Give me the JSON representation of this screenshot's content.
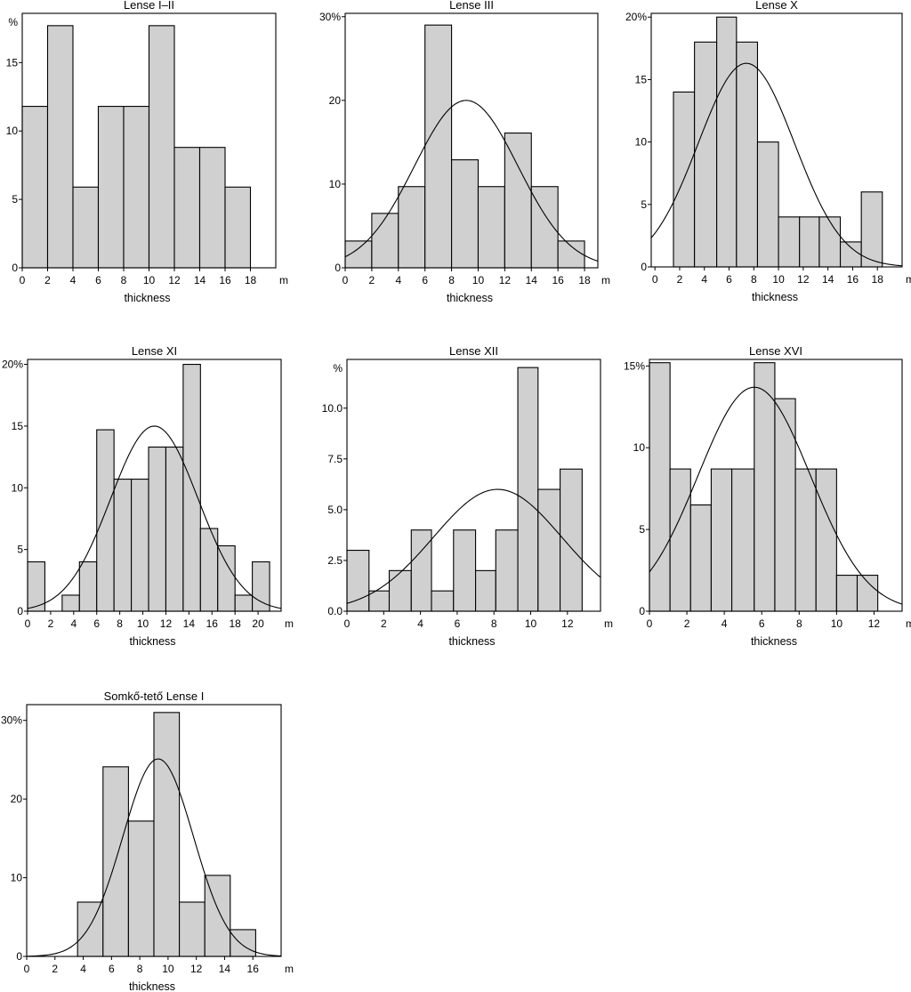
{
  "chart_data": [
    {
      "type": "bar",
      "title": "Lense I–II",
      "xlabel": "thickness",
      "x_unit": "m",
      "y_unit_label": "%",
      "percent_on_top_tick": false,
      "bin_edges": [
        0,
        2,
        4,
        6,
        8,
        10,
        12,
        14,
        16,
        18
      ],
      "values": [
        11.8,
        17.7,
        5.9,
        11.8,
        11.8,
        17.7,
        8.8,
        8.8,
        5.9
      ],
      "xlim": [
        0,
        20
      ],
      "ylim": [
        0,
        18.6
      ],
      "xticks": [
        0,
        2,
        4,
        6,
        8,
        10,
        12,
        14,
        16,
        18
      ],
      "yticks": [
        0,
        5,
        10,
        15
      ],
      "normal_curve": null
    },
    {
      "type": "bar",
      "title": "Lense III",
      "xlabel": "thickness",
      "x_unit": "m",
      "y_unit_label": "",
      "percent_on_top_tick": true,
      "bin_edges": [
        0,
        2,
        4,
        6,
        8,
        10,
        12,
        14,
        16,
        18
      ],
      "values": [
        3.2,
        6.5,
        9.7,
        29.0,
        12.9,
        9.7,
        16.1,
        9.7,
        3.2
      ],
      "xlim": [
        0,
        19
      ],
      "ylim": [
        0,
        30.4
      ],
      "xticks": [
        0,
        2,
        4,
        6,
        8,
        10,
        12,
        14,
        16,
        18
      ],
      "yticks": [
        0,
        10,
        20,
        30
      ],
      "normal_curve": {
        "mean": 9.1,
        "sd": 3.9,
        "peak": 20.0
      }
    },
    {
      "type": "bar",
      "title": "Lense X",
      "xlabel": "thickness",
      "x_unit": "m",
      "y_unit_label": "",
      "percent_on_top_tick": true,
      "bin_edges": [
        1.5,
        3.2,
        5,
        6.6,
        8.3,
        10,
        11.7,
        13.3,
        15,
        16.7,
        18.4
      ],
      "values": [
        14,
        18,
        20,
        18,
        10,
        4,
        4,
        4,
        2,
        6
      ],
      "xlim": [
        -0.3,
        20
      ],
      "ylim": [
        0,
        20.3
      ],
      "xticks": [
        0,
        2,
        4,
        6,
        8,
        10,
        12,
        14,
        16,
        18
      ],
      "yticks": [
        0,
        5,
        10,
        15,
        20
      ],
      "normal_curve": {
        "mean": 7.4,
        "sd": 3.9,
        "peak": 16.3
      }
    },
    {
      "type": "bar",
      "title": "Lense XI",
      "xlabel": "thickness",
      "x_unit": "m",
      "y_unit_label": "",
      "percent_on_top_tick": true,
      "bin_edges": [
        0,
        1.5,
        3,
        4.5,
        6,
        7.5,
        9,
        10.5,
        12,
        13.5,
        15,
        16.5,
        18,
        19.5,
        21
      ],
      "values": [
        4.0,
        0,
        1.3,
        4.0,
        14.7,
        10.7,
        10.7,
        13.3,
        13.3,
        20.0,
        6.7,
        5.3,
        1.3,
        4.0
      ],
      "xlim": [
        0,
        22
      ],
      "ylim": [
        0,
        20.4
      ],
      "xticks": [
        0,
        2,
        4,
        6,
        8,
        10,
        12,
        14,
        16,
        18,
        20
      ],
      "yticks": [
        0,
        5,
        10,
        15,
        20
      ],
      "normal_curve": {
        "mean": 11.0,
        "sd": 3.8,
        "peak": 15.0
      }
    },
    {
      "type": "bar",
      "title": "Lense XII",
      "xlabel": "thickness",
      "x_unit": "m",
      "y_unit_label": "%",
      "percent_on_top_tick": false,
      "bin_edges": [
        0,
        1.2,
        2.3,
        3.5,
        4.6,
        5.8,
        7.0,
        8.1,
        9.3,
        10.4,
        11.6,
        12.8
      ],
      "values": [
        3.0,
        1.0,
        2.0,
        4.0,
        1.0,
        4.0,
        2.0,
        4.0,
        12.0,
        6.0,
        7.0
      ],
      "xlim": [
        0,
        13.8
      ],
      "ylim": [
        0,
        12.4
      ],
      "xticks": [
        0,
        2,
        4,
        6,
        8,
        10,
        12
      ],
      "yticks": [
        0.0,
        2.5,
        5.0,
        7.5,
        10.0
      ],
      "tick_format": "fixed1",
      "normal_curve": {
        "mean": 8.2,
        "sd": 3.5,
        "peak": 6.0
      }
    },
    {
      "type": "bar",
      "title": "Lense XVI",
      "xlabel": "thickness",
      "x_unit": "m",
      "y_unit_label": "",
      "percent_on_top_tick": true,
      "bin_edges": [
        0,
        1.1,
        2.2,
        3.3,
        4.4,
        5.6,
        6.7,
        7.8,
        8.9,
        10.0,
        11.1,
        12.2
      ],
      "values": [
        15.2,
        8.7,
        6.5,
        8.7,
        8.7,
        15.2,
        13.0,
        8.7,
        8.7,
        2.2,
        2.2
      ],
      "xlim": [
        0,
        13.5
      ],
      "ylim": [
        0,
        15.4
      ],
      "xticks": [
        0,
        2,
        4,
        6,
        8,
        10,
        12
      ],
      "yticks": [
        0,
        5,
        10,
        15
      ],
      "normal_curve": {
        "mean": 5.6,
        "sd": 3.0,
        "peak": 13.7
      }
    },
    {
      "type": "bar",
      "title": "Somkő-tető Lense I",
      "xlabel": "thickness",
      "x_unit": "m",
      "y_unit_label": "",
      "percent_on_top_tick": true,
      "bin_edges": [
        3.6,
        5.4,
        7.2,
        9.0,
        10.8,
        12.6,
        14.4,
        16.2
      ],
      "values": [
        6.9,
        24.1,
        17.2,
        31.0,
        6.9,
        10.3,
        3.4
      ],
      "xlim": [
        0,
        18
      ],
      "ylim": [
        0,
        32
      ],
      "xticks": [
        0,
        2,
        4,
        6,
        8,
        10,
        12,
        14,
        16
      ],
      "yticks": [
        0,
        10,
        20,
        30
      ],
      "normal_curve": {
        "mean": 9.3,
        "sd": 2.5,
        "peak": 25.1
      }
    }
  ]
}
